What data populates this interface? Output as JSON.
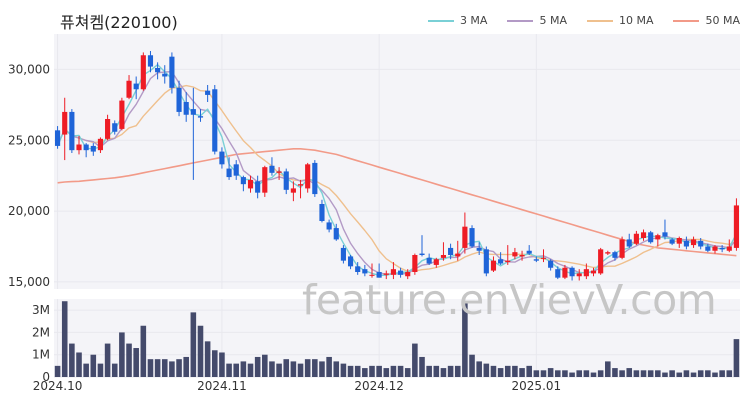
{
  "chart_data": {
    "type": "candlestick",
    "title": "퓨쳐켐(220100)",
    "watermark": "feature.enVievV.com",
    "legend": [
      {
        "label": "3 MA",
        "color": "#7ad0d6"
      },
      {
        "label": "5 MA",
        "color": "#b39ac6"
      },
      {
        "label": "10 MA",
        "color": "#efc08e"
      },
      {
        "label": "50 MA",
        "color": "#f29a88"
      }
    ],
    "colors": {
      "up": "#ee1c25",
      "down": "#1f64d8",
      "volume": "#444a6b",
      "grid": "#e8e8ee",
      "plot_bg": "#f4f4f8"
    },
    "price_axis": {
      "ylim": [
        14500,
        32500
      ],
      "ticks": [
        15000,
        20000,
        25000,
        30000
      ],
      "tick_labels": [
        "15,000",
        "20,000",
        "25,000",
        "30,000"
      ]
    },
    "volume_axis": {
      "ylim": [
        0,
        3500000
      ],
      "ticks": [
        0,
        1000000,
        2000000,
        3000000
      ],
      "tick_labels": [
        "0",
        "1M",
        "2M",
        "3M"
      ]
    },
    "x_ticks": [
      {
        "index": 0,
        "label": "2024.10"
      },
      {
        "index": 23,
        "label": "2024.11"
      },
      {
        "index": 45,
        "label": "2024.12"
      },
      {
        "index": 67,
        "label": "2025.01"
      }
    ],
    "ohlc": [
      [
        25700,
        26000,
        24400,
        24600
      ],
      [
        25400,
        28000,
        23600,
        27000
      ],
      [
        27000,
        27200,
        24100,
        24300
      ],
      [
        24300,
        25300,
        24000,
        24700
      ],
      [
        24700,
        24800,
        23800,
        24300
      ],
      [
        24600,
        24800,
        23900,
        24200
      ],
      [
        24300,
        25200,
        24100,
        25100
      ],
      [
        25100,
        26800,
        25000,
        26500
      ],
      [
        26200,
        26400,
        25400,
        25600
      ],
      [
        25800,
        28000,
        25700,
        27800
      ],
      [
        28000,
        29600,
        27900,
        29200
      ],
      [
        29000,
        29500,
        27900,
        28600
      ],
      [
        28600,
        31200,
        28500,
        31000
      ],
      [
        31000,
        31300,
        29800,
        30200
      ],
      [
        30100,
        30500,
        29300,
        29800
      ],
      [
        29700,
        30300,
        29000,
        29500
      ],
      [
        30900,
        31200,
        28300,
        28700
      ],
      [
        28700,
        29200,
        26700,
        27000
      ],
      [
        27700,
        28400,
        26300,
        26800
      ],
      [
        27200,
        28700,
        22200,
        26800
      ],
      [
        26700,
        27200,
        26300,
        26600
      ],
      [
        28500,
        28900,
        27700,
        28200
      ],
      [
        28600,
        28900,
        24000,
        24200
      ],
      [
        24200,
        24500,
        23000,
        23300
      ],
      [
        23000,
        23800,
        22200,
        22400
      ],
      [
        23300,
        23600,
        22200,
        22500
      ],
      [
        22400,
        22500,
        21400,
        21900
      ],
      [
        21600,
        22500,
        21300,
        22200
      ],
      [
        22100,
        22500,
        20900,
        21300
      ],
      [
        21300,
        23200,
        21000,
        23100
      ],
      [
        23200,
        23800,
        22500,
        22700
      ],
      [
        22700,
        23100,
        22200,
        22800
      ],
      [
        22800,
        23000,
        21200,
        21500
      ],
      [
        21300,
        22100,
        20700,
        21600
      ],
      [
        21800,
        22200,
        20900,
        21900
      ],
      [
        21600,
        23400,
        21300,
        23300
      ],
      [
        23400,
        23600,
        21000,
        21200
      ],
      [
        20500,
        20800,
        19200,
        19300
      ],
      [
        19200,
        19400,
        18500,
        18700
      ],
      [
        18800,
        19100,
        17900,
        18000
      ],
      [
        17400,
        17600,
        16300,
        16500
      ],
      [
        16800,
        16900,
        15900,
        16100
      ],
      [
        16100,
        16400,
        15500,
        15700
      ],
      [
        15900,
        16200,
        15400,
        15600
      ],
      [
        15500,
        16300,
        15300,
        15500
      ],
      [
        15700,
        16300,
        15300,
        15300
      ],
      [
        15500,
        15800,
        15200,
        15600
      ],
      [
        15500,
        16400,
        15200,
        15900
      ],
      [
        15800,
        16000,
        15300,
        15500
      ],
      [
        15400,
        15900,
        15200,
        15700
      ],
      [
        15700,
        17000,
        15500,
        16900
      ],
      [
        17000,
        18300,
        16800,
        16900
      ],
      [
        16700,
        17000,
        16200,
        16300
      ],
      [
        16200,
        16700,
        16000,
        16600
      ],
      [
        16700,
        17800,
        16500,
        16900
      ],
      [
        17400,
        17700,
        16600,
        16900
      ],
      [
        16800,
        17900,
        16500,
        17000
      ],
      [
        17400,
        19900,
        17000,
        18900
      ],
      [
        18800,
        19000,
        17400,
        17500
      ],
      [
        17400,
        17800,
        16900,
        17200
      ],
      [
        17300,
        17500,
        15400,
        15600
      ],
      [
        15800,
        16800,
        15700,
        16500
      ],
      [
        16600,
        17100,
        16200,
        16300
      ],
      [
        16400,
        17600,
        16200,
        16500
      ],
      [
        16800,
        17400,
        16600,
        17100
      ],
      [
        16800,
        17200,
        16500,
        16900
      ],
      [
        17200,
        17600,
        16900,
        17000
      ],
      [
        16600,
        16800,
        16400,
        16500
      ],
      [
        16700,
        17300,
        16400,
        16700
      ],
      [
        16500,
        16600,
        15800,
        16000
      ],
      [
        15900,
        16100,
        15200,
        15300
      ],
      [
        15300,
        16200,
        15200,
        16000
      ],
      [
        16000,
        16100,
        15100,
        15400
      ],
      [
        15400,
        15900,
        15100,
        15600
      ],
      [
        15400,
        16300,
        15200,
        15900
      ],
      [
        15600,
        16000,
        15400,
        15800
      ],
      [
        15600,
        17400,
        15500,
        17300
      ],
      [
        17000,
        17200,
        16900,
        17100
      ],
      [
        17100,
        17200,
        16500,
        16700
      ],
      [
        16700,
        18200,
        16600,
        18000
      ],
      [
        18000,
        18400,
        17400,
        17500
      ],
      [
        17700,
        18600,
        17600,
        18400
      ],
      [
        18100,
        18700,
        17900,
        18500
      ],
      [
        18500,
        18600,
        17700,
        17800
      ],
      [
        18000,
        18400,
        17500,
        18300
      ],
      [
        18500,
        19400,
        18000,
        18200
      ],
      [
        18000,
        18100,
        17600,
        17700
      ],
      [
        17700,
        18200,
        17400,
        18100
      ],
      [
        17900,
        18200,
        17300,
        17500
      ],
      [
        17600,
        18200,
        17400,
        18000
      ],
      [
        17900,
        18100,
        17300,
        17500
      ],
      [
        17500,
        17700,
        17100,
        17200
      ],
      [
        17200,
        17600,
        17000,
        17500
      ],
      [
        17400,
        17600,
        17100,
        17300
      ],
      [
        17200,
        18000,
        17100,
        17500
      ],
      [
        17400,
        20900,
        17200,
        20400
      ]
    ],
    "volume": [
      500000,
      3400000,
      1500000,
      1100000,
      600000,
      1000000,
      600000,
      1500000,
      600000,
      2000000,
      1500000,
      1300000,
      2300000,
      800000,
      800000,
      800000,
      700000,
      800000,
      900000,
      2900000,
      2300000,
      1600000,
      1200000,
      1100000,
      600000,
      600000,
      700000,
      600000,
      900000,
      1000000,
      700000,
      600000,
      800000,
      700000,
      600000,
      800000,
      800000,
      700000,
      900000,
      700000,
      600000,
      500000,
      500000,
      400000,
      500000,
      500000,
      400000,
      500000,
      500000,
      400000,
      1500000,
      900000,
      500000,
      500000,
      400000,
      500000,
      500000,
      3400000,
      1000000,
      700000,
      600000,
      500000,
      400000,
      500000,
      500000,
      400000,
      500000,
      300000,
      300000,
      400000,
      300000,
      300000,
      200000,
      300000,
      300000,
      200000,
      300000,
      700000,
      400000,
      300000,
      400000,
      300000,
      300000,
      300000,
      300000,
      200000,
      300000,
      200000,
      300000,
      200000,
      300000,
      300000,
      200000,
      300000,
      300000,
      1700000
    ],
    "ma50": [
      22000,
      22050,
      22080,
      22100,
      22150,
      22200,
      22250,
      22300,
      22350,
      22420,
      22500,
      22600,
      22700,
      22800,
      22900,
      23000,
      23100,
      23200,
      23300,
      23400,
      23500,
      23600,
      23700,
      23800,
      23900,
      24000,
      24050,
      24100,
      24150,
      24200,
      24250,
      24300,
      24350,
      24400,
      24400,
      24350,
      24300,
      24200,
      24100,
      24000,
      23850,
      23700,
      23550,
      23400,
      23250,
      23100,
      22950,
      22800,
      22650,
      22500,
      22350,
      22200,
      22050,
      21900,
      21750,
      21600,
      21450,
      21300,
      21150,
      21000,
      20850,
      20700,
      20550,
      20400,
      20250,
      20100,
      19950,
      19800,
      19650,
      19500,
      19350,
      19200,
      19050,
      18900,
      18750,
      18600,
      18450,
      18300,
      18150,
      18000,
      17850,
      17700,
      17600,
      17500,
      17400,
      17350,
      17300,
      17250,
      17200,
      17150,
      17100,
      17050,
      17000,
      16950,
      16900,
      16850
    ]
  }
}
